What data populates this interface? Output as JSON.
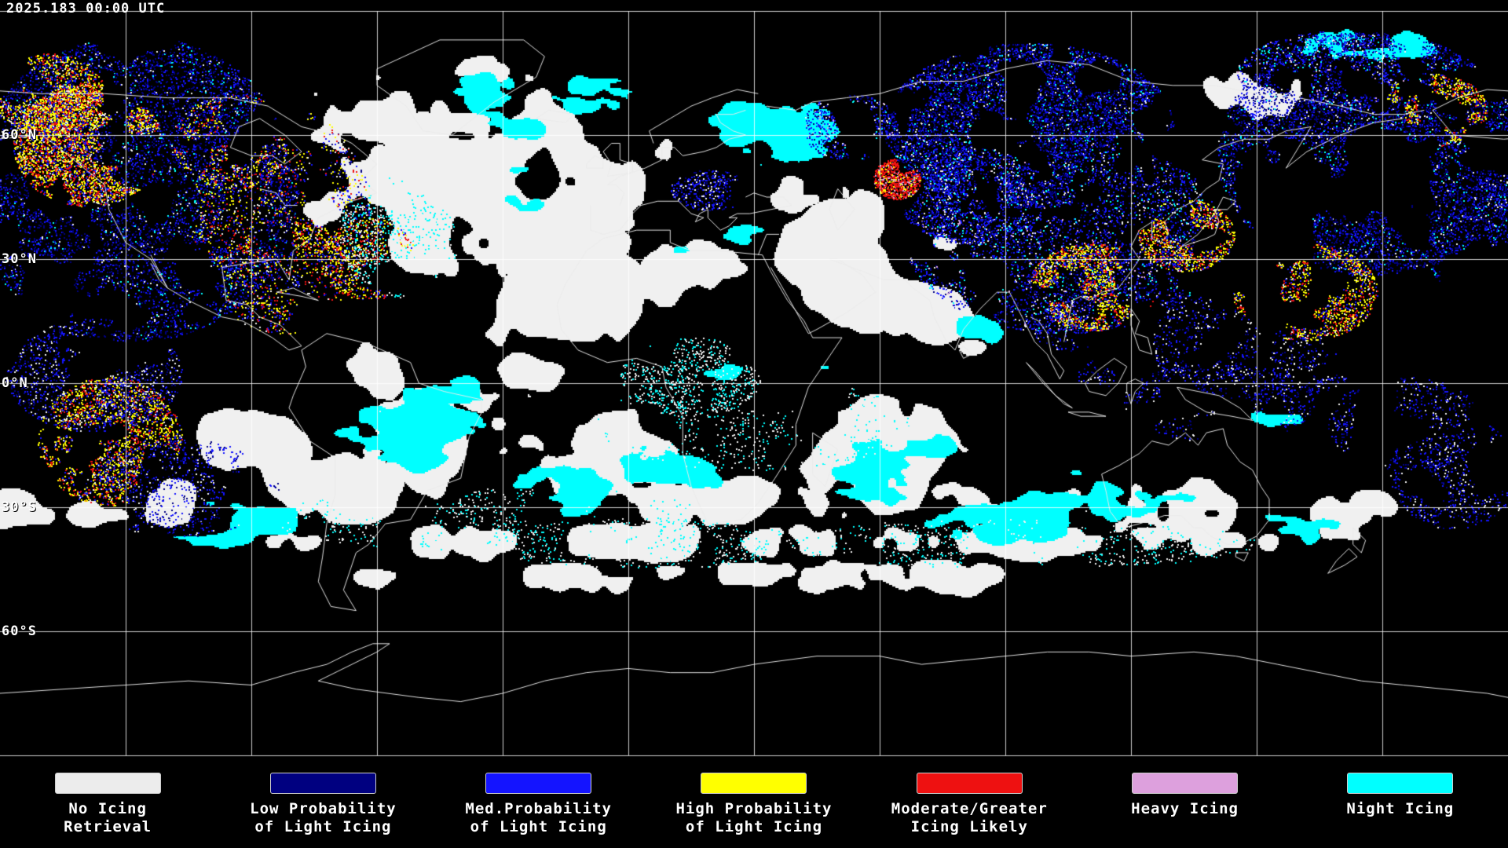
{
  "header": {
    "timestamp": "2025.183 00:00 UTC"
  },
  "map": {
    "lat_labels": [
      "60°N",
      "30°N",
      "0°N",
      "30°S",
      "60°S"
    ]
  },
  "legend": {
    "items": [
      {
        "line1": "No Icing",
        "line2": "Retrieval",
        "color": "#ececec"
      },
      {
        "line1": "Low Probability",
        "line2": "of Light Icing",
        "color": "#000080"
      },
      {
        "line1": "Med.Probability",
        "line2": "of Light Icing",
        "color": "#1414ff"
      },
      {
        "line1": "High Probability",
        "line2": "of Light Icing",
        "color": "#ffff00"
      },
      {
        "line1": "Moderate/Greater",
        "line2": "Icing Likely",
        "color": "#ee1111"
      },
      {
        "line1": "Heavy Icing",
        "line2": "",
        "color": "#dda0dd"
      },
      {
        "line1": "Night Icing",
        "line2": "",
        "color": "#00ffff"
      }
    ]
  }
}
